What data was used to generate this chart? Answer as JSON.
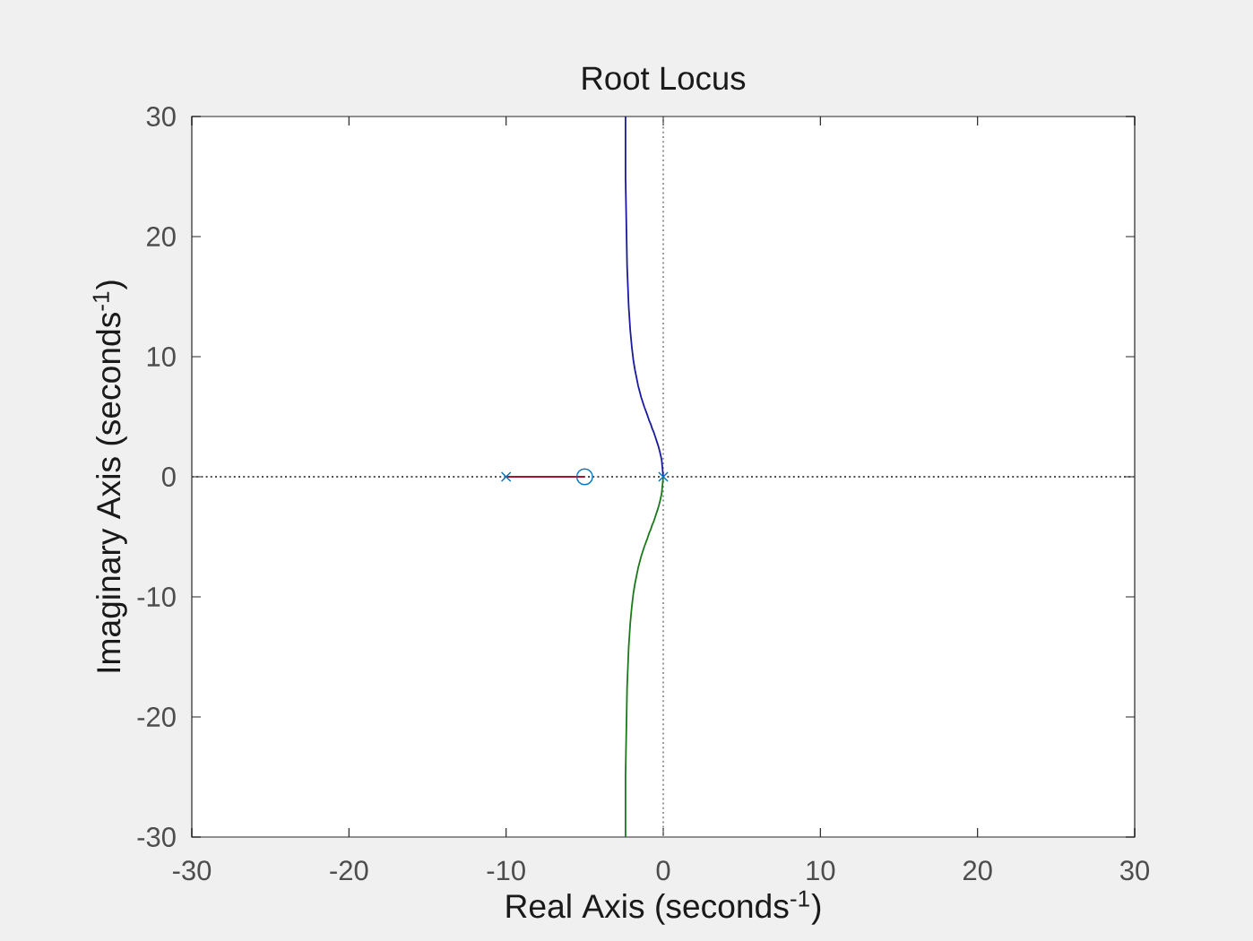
{
  "chart_data": {
    "type": "line",
    "title": "Root Locus",
    "xlabel": "Real Axis (seconds$^{-1}$)",
    "ylabel": "Imaginary Axis (seconds$^{-1}$)",
    "xlim": [
      -30,
      30
    ],
    "ylim": [
      -30,
      30
    ],
    "xticks": [
      -30,
      -20,
      -10,
      0,
      10,
      20,
      30
    ],
    "yticks": [
      -30,
      -20,
      -10,
      0,
      10,
      20,
      30
    ],
    "grid": false,
    "ref_lines": [
      {
        "axis": "x",
        "value": 0,
        "color": "#9a9a9a",
        "line_style": "dotted"
      },
      {
        "axis": "y",
        "value": 0,
        "color": "#505050",
        "line_style": "dotted"
      }
    ],
    "series": [
      {
        "color": "#a2142f",
        "x": [
          -10,
          -5
        ],
        "values": [
          0,
          0
        ]
      },
      {
        "color": "#1a1aa0",
        "x": [
          0,
          -0.1,
          -0.2,
          -0.3,
          -0.4,
          -0.5,
          -0.6,
          -0.7,
          -0.8,
          -0.9,
          -1.0,
          -1.2,
          -1.4,
          -1.6,
          -1.8,
          -1.9,
          -2.0,
          -2.1,
          -2.2,
          -2.3,
          -2.4,
          -2.4
        ],
        "values": [
          0,
          1.4,
          2.0,
          2.5,
          2.9,
          3.3,
          3.7,
          4.0,
          4.4,
          4.7,
          5.1,
          5.8,
          6.6,
          7.6,
          8.9,
          9.7,
          10.8,
          12.2,
          14.2,
          17.5,
          24.9,
          30
        ]
      },
      {
        "color": "#1a7a1a",
        "x": [
          0,
          -0.1,
          -0.2,
          -0.3,
          -0.4,
          -0.5,
          -0.6,
          -0.7,
          -0.8,
          -0.9,
          -1.0,
          -1.2,
          -1.4,
          -1.6,
          -1.8,
          -1.9,
          -2.0,
          -2.1,
          -2.2,
          -2.3,
          -2.4,
          -2.4
        ],
        "values": [
          0,
          -1.4,
          -2.0,
          -2.5,
          -2.9,
          -3.3,
          -3.7,
          -4.0,
          -4.4,
          -4.7,
          -5.1,
          -5.8,
          -6.6,
          -7.6,
          -8.9,
          -9.7,
          -10.8,
          -12.2,
          -14.2,
          -17.5,
          -24.9,
          -30
        ]
      },
      {
        "type": "scatter",
        "marker": "cross",
        "color": "#0072bd",
        "x": [
          -10,
          0
        ],
        "values": [
          0,
          0
        ]
      },
      {
        "type": "scatter",
        "marker": "circle",
        "color": "#0072bd",
        "x": [
          -5
        ],
        "values": [
          0
        ]
      }
    ]
  }
}
